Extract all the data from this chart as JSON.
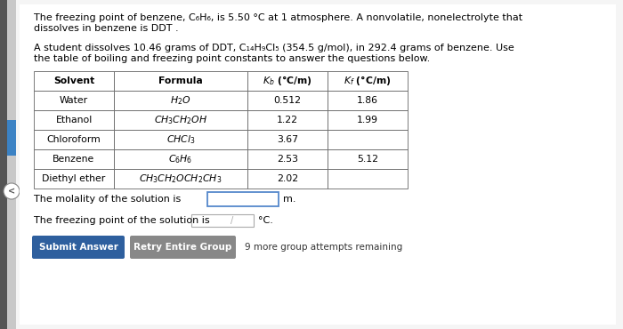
{
  "bg_color": "#f0f0f0",
  "content_bg": "#ffffff",
  "text_color": "#000000",
  "para1_line1": "The freezing point of benzene, C₆H₆, is 5.50 °C at 1 atmosphere. A nonvolatile, nonelectrolyte that",
  "para1_line2": "dissolves in benzene is DDT .",
  "para2_line1": "A student dissolves 10.46 grams of DDT, C₁₄H₉Cl₅ (354.5 g/mol), in 292.4 grams of benzene. Use",
  "para2_line2": "the table of boiling and freezing point constants to answer the questions below.",
  "table_rows": [
    [
      "Water",
      "$H_2O$",
      "0.512",
      "1.86"
    ],
    [
      "Ethanol",
      "$CH_3CH_2OH$",
      "1.22",
      "1.99"
    ],
    [
      "Chloroform",
      "$CHCl_3$",
      "3.67",
      ""
    ],
    [
      "Benzene",
      "$C_6H_6$",
      "2.53",
      "5.12"
    ],
    [
      "Diethyl ether",
      "$CH_3CH_2OCH_2CH_3$",
      "2.02",
      ""
    ]
  ],
  "q1": "The molality of the solution is",
  "q1_unit": "m.",
  "q2": "The freezing point of the solution is",
  "q2_unit": "°C.",
  "btn1_text": "Submit Answer",
  "btn1_color": "#2e5f9e",
  "btn2_text": "Retry Entire Group",
  "btn2_color": "#888888",
  "footer": "9 more group attempts remaining",
  "left_sidebar_color": "#d0d0d0",
  "blue_accent_color": "#3b82c4",
  "arrow_circle_color": "#ffffff",
  "arrow_color": "#555555"
}
